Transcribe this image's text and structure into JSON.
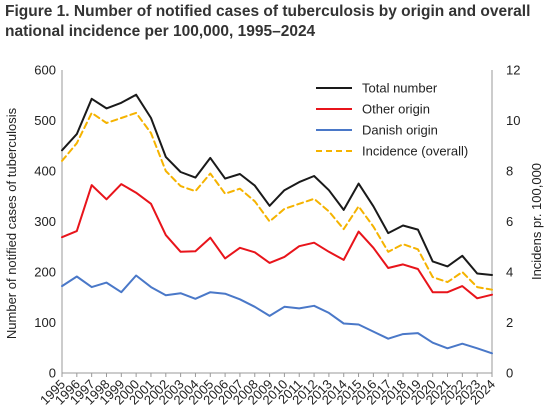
{
  "title_line1": "Figure 1. Number of notified cases of tuberculosis by origin and overall",
  "title_line2": "national incidence per 100,000, 1995–2024",
  "chart_data": {
    "type": "line",
    "title": "Figure 1. Number of notified cases of tuberculosis by origin and overall national incidence per 100,000, 1995–2024",
    "xlabel": "",
    "ylabel": "Number of notified cases of tuberculosis",
    "y2label": "Incidens pr. 100,000",
    "x": [
      1995,
      1996,
      1997,
      1998,
      1999,
      2000,
      2001,
      2002,
      2003,
      2004,
      2005,
      2006,
      2007,
      2008,
      2009,
      2010,
      2011,
      2012,
      2013,
      2014,
      2015,
      2016,
      2017,
      2018,
      2019,
      2020,
      2021,
      2022,
      2023,
      2024
    ],
    "xticks": [
      "1995",
      "1997",
      "1999",
      "2001",
      "2003",
      "2005",
      "2007",
      "2009",
      "2011",
      "2013",
      "2015",
      "2017",
      "2019",
      "2021",
      "2023",
      "1996",
      "1998",
      "2000",
      "2002",
      "2004",
      "2006",
      "2008",
      "2010",
      "2012",
      "2014",
      "2016",
      "2018",
      "2020",
      "2022",
      "2024"
    ],
    "ylim": [
      0,
      600
    ],
    "yticks": [
      "0",
      "100",
      "200",
      "300",
      "400",
      "500",
      "600"
    ],
    "y2lim": [
      0,
      12
    ],
    "y2ticks": [
      "0",
      "2",
      "4",
      "6",
      "8",
      "10",
      "12"
    ],
    "grid": false,
    "legend_position": "top-right",
    "series": [
      {
        "name": "Total number",
        "axis": "left",
        "color": "#1a1a1a",
        "dash": "solid",
        "values": [
          441,
          473,
          543,
          524,
          535,
          551,
          505,
          428,
          398,
          387,
          426,
          385,
          394,
          371,
          331,
          362,
          378,
          390,
          362,
          323,
          375,
          330,
          277,
          292,
          284,
          221,
          211,
          232,
          197,
          194
        ]
      },
      {
        "name": "Other origin",
        "axis": "left",
        "color": "#e8141b",
        "dash": "solid",
        "values": [
          269,
          281,
          372,
          344,
          374,
          357,
          335,
          273,
          240,
          241,
          268,
          227,
          248,
          239,
          218,
          230,
          251,
          258,
          240,
          224,
          280,
          248,
          208,
          215,
          206,
          160,
          160,
          172,
          148,
          155
        ]
      },
      {
        "name": "Danish origin",
        "axis": "left",
        "color": "#4a78c8",
        "dash": "solid",
        "values": [
          172,
          191,
          170,
          179,
          160,
          193,
          170,
          154,
          158,
          147,
          160,
          157,
          146,
          131,
          113,
          131,
          128,
          133,
          119,
          98,
          96,
          82,
          68,
          77,
          79,
          60,
          49,
          58,
          49,
          39
        ]
      },
      {
        "name": "Incidence (overall)",
        "axis": "right",
        "color": "#f5b300",
        "dash": "dashed",
        "values": [
          8.4,
          9.1,
          10.3,
          9.9,
          10.1,
          10.3,
          9.5,
          8.0,
          7.4,
          7.2,
          7.9,
          7.1,
          7.3,
          6.8,
          6.0,
          6.5,
          6.7,
          6.9,
          6.4,
          5.7,
          6.6,
          5.8,
          4.8,
          5.1,
          4.9,
          3.8,
          3.6,
          4.0,
          3.4,
          3.3
        ]
      }
    ]
  }
}
